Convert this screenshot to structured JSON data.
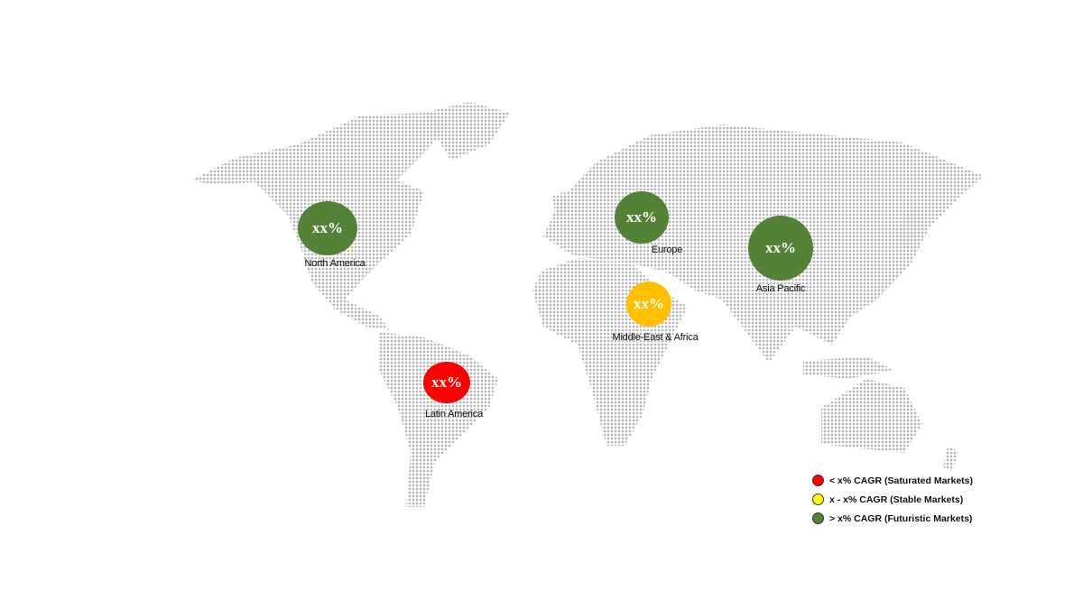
{
  "regions": [
    {
      "name": "North America",
      "value": "xx%",
      "color": "#538135"
    },
    {
      "name": "Europe",
      "value": "xx%",
      "color": "#538135"
    },
    {
      "name": "Asia Pacific",
      "value": "xx%",
      "color": "#538135"
    },
    {
      "name": "Middle-East & Africa",
      "value": "xx%",
      "color": "#FFC000"
    },
    {
      "name": "Latin America",
      "value": "xx%",
      "color": "#FF0000"
    }
  ],
  "legend": [
    {
      "label": "< x% CAGR (Saturated Markets)",
      "color": "#FF0000"
    },
    {
      "label": "x - x% CAGR (Stable Markets)",
      "color": "#FFFF00"
    },
    {
      "label": "> x% CAGR (Futuristic Markets)",
      "color": "#538135"
    }
  ]
}
